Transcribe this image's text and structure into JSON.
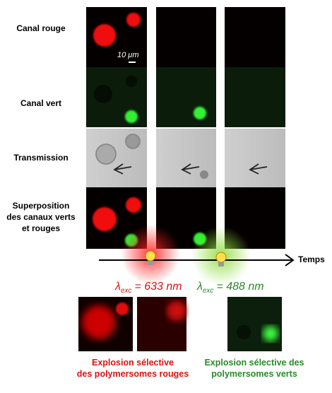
{
  "row_labels": [
    [
      "Canal rouge"
    ],
    [
      "Canal vert"
    ],
    [
      "Transmission"
    ],
    [
      "Superposition",
      "des canaux verts",
      "et rouges"
    ]
  ],
  "scale_bar": "10 μm",
  "axis_label": "Temps",
  "excitations": [
    {
      "symbol": "λ",
      "subscript": "exc",
      "text": "= 633 nm"
    },
    {
      "symbol": "λ",
      "subscript": "exc",
      "text": "= 488 nm"
    }
  ],
  "captions": [
    [
      "Explosion sélective",
      "des polymersomes rouges"
    ],
    [
      "Explosion sélective des",
      "polymersomes verts"
    ]
  ]
}
